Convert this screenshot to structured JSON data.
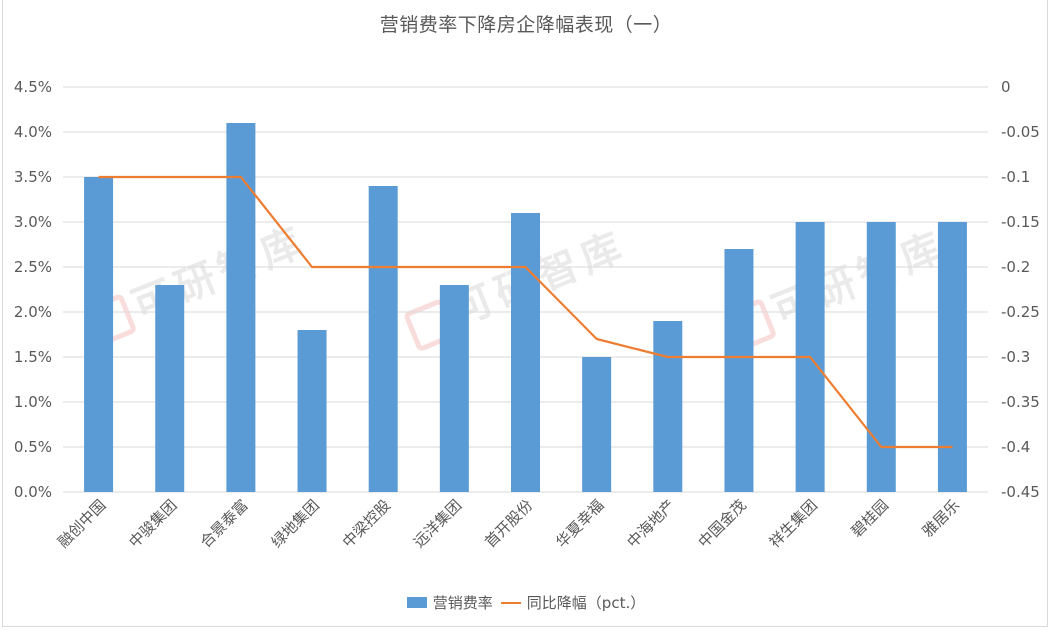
{
  "chart_data": {
    "type": "bar+line",
    "title": "营销费率下降房企降幅表现（一）",
    "categories": [
      "融创中国",
      "中骏集团",
      "合景泰富",
      "绿地集团",
      "中梁控股",
      "远洋集团",
      "首开股份",
      "华夏幸福",
      "中海地产",
      "中国金茂",
      "祥生集团",
      "碧桂园",
      "雅居乐"
    ],
    "series": [
      {
        "name": "营销费率",
        "type": "bar",
        "axis": "left",
        "color": "#5b9bd5",
        "values": [
          3.5,
          2.3,
          4.1,
          1.8,
          3.4,
          2.3,
          3.1,
          1.5,
          1.9,
          2.7,
          3.0,
          3.0,
          3.0
        ]
      },
      {
        "name": "同比降幅（pct.）",
        "type": "line",
        "axis": "right",
        "color": "#ed7d31",
        "values": [
          -0.1,
          -0.1,
          -0.1,
          -0.2,
          -0.2,
          -0.2,
          -0.2,
          -0.28,
          -0.3,
          -0.3,
          -0.3,
          -0.4,
          -0.4
        ]
      }
    ],
    "left_axis": {
      "min": 0,
      "max": 4.5,
      "step": 0.5,
      "unit": "%",
      "ticks": [
        "4.5%",
        "4.0%",
        "3.5%",
        "3.0%",
        "2.5%",
        "2.0%",
        "1.5%",
        "1.0%",
        "0.5%",
        "0.0%"
      ]
    },
    "right_axis": {
      "min": -0.45,
      "max": 0,
      "step": 0.05,
      "ticks": [
        "0",
        "-0.05",
        "-0.1",
        "-0.15",
        "-0.2",
        "-0.25",
        "-0.3",
        "-0.35",
        "-0.4",
        "-0.45"
      ]
    },
    "xlabel": "",
    "ylabel": "",
    "grid": true,
    "legend_position": "bottom"
  },
  "legend": {
    "bar_label": "营销费率",
    "line_label": "同比降幅（pct.）"
  },
  "watermark": "可研智库"
}
